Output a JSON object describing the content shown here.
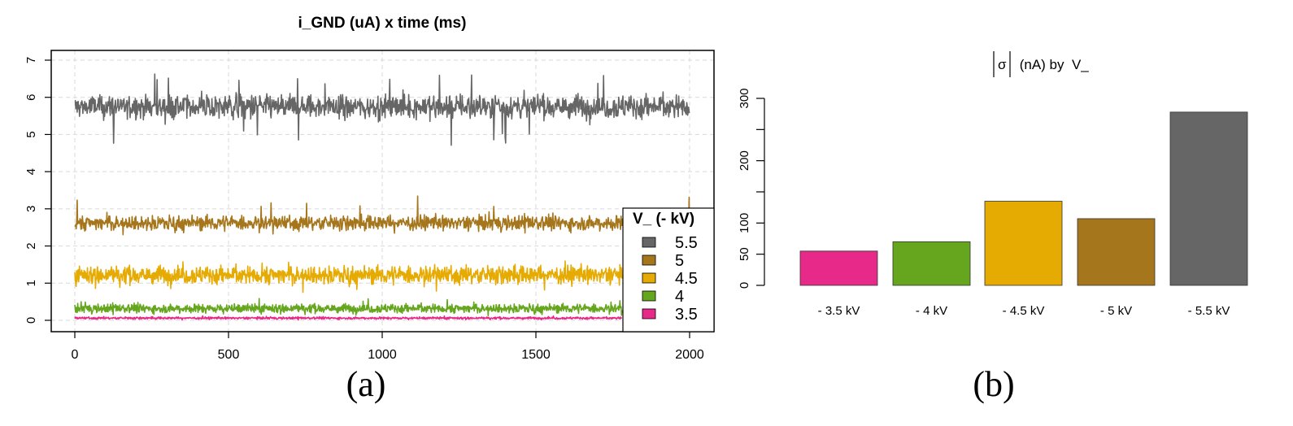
{
  "chart_data": [
    {
      "type": "line",
      "title": "i_GND (uA) x time (ms)",
      "xlabel": "",
      "ylabel": "",
      "xlim": [
        0,
        2000
      ],
      "ylim": [
        0,
        7
      ],
      "x_ticks": [
        "0",
        "500",
        "1000",
        "1500",
        "2000"
      ],
      "y_ticks": [
        "0",
        "1",
        "2",
        "3",
        "4",
        "5",
        "6",
        "7"
      ],
      "grid": true,
      "legend": {
        "title": "V_ (- kV)",
        "placement": "right-bottom"
      },
      "series": [
        {
          "name": "5.5",
          "color": "#666666",
          "mean": 5.75,
          "noise": 0.16,
          "spike_max": 6.65,
          "spike_min": 4.7
        },
        {
          "name": "5",
          "color": "#A6761D",
          "mean": 2.62,
          "noise": 0.1,
          "spike_max": 3.35,
          "spike_min": 2.3
        },
        {
          "name": "4.5",
          "color": "#E6AB02",
          "mean": 1.22,
          "noise": 0.12,
          "spike_max": 1.6,
          "spike_min": 0.75
        },
        {
          "name": "4",
          "color": "#66A61E",
          "mean": 0.32,
          "noise": 0.06,
          "spike_max": 0.6,
          "spike_min": 0.12
        },
        {
          "name": "3.5",
          "color": "#E7298A",
          "mean": 0.06,
          "noise": 0.015,
          "spike_max": 0.12,
          "spike_min": 0.0
        }
      ],
      "panel_label": "(a)"
    },
    {
      "type": "bar",
      "title": "|σ| (nA) by  V_",
      "categories": [
        "- 3.5 kV",
        "- 4 kV",
        "- 4.5 kV",
        "- 5 kV",
        "- 5.5 kV"
      ],
      "values": [
        55,
        70,
        135,
        107,
        278
      ],
      "colors": [
        "#E7298A",
        "#66A61E",
        "#E6AB02",
        "#A6761D",
        "#666666"
      ],
      "y_ticks": [
        "0",
        "50",
        "100",
        "200",
        "300"
      ],
      "ylim": [
        0,
        300
      ],
      "panel_label": "(b)"
    }
  ]
}
